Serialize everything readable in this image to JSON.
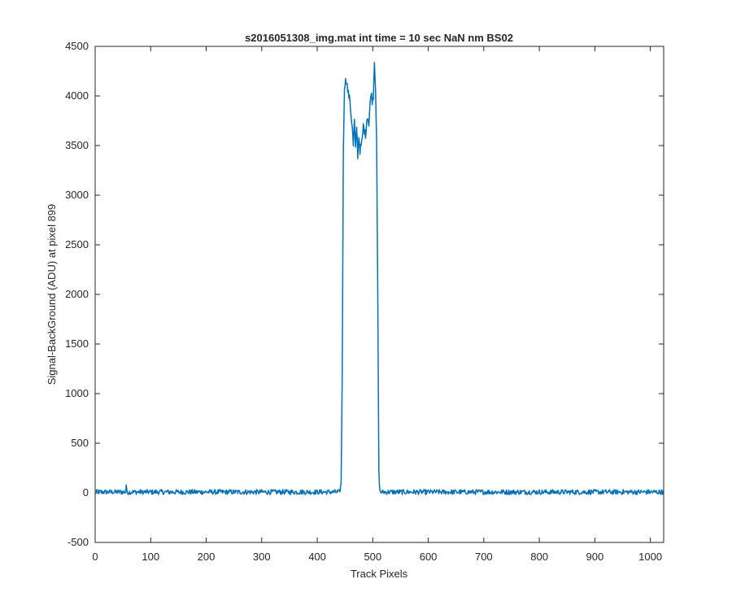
{
  "chart_data": {
    "type": "line",
    "title": "s2016051308_img.mat int time = 10 sec  NaN nm BS02",
    "xlabel": "Track Pixels",
    "ylabel": "Signal-BackGround (ADU) at pixel 899",
    "xlim": [
      0,
      1024
    ],
    "ylim": [
      -500,
      4500
    ],
    "xticks": [
      0,
      100,
      200,
      300,
      400,
      500,
      600,
      700,
      800,
      900,
      1000
    ],
    "yticks": [
      -500,
      0,
      500,
      1000,
      1500,
      2000,
      2500,
      3000,
      3500,
      4000,
      4500
    ],
    "grid": false,
    "legend": "none",
    "series": [
      {
        "color": "#0072BD",
        "baseline_noise": {
          "x_range": [
            0,
            1024
          ],
          "mean": 8,
          "amplitude": 25,
          "note_spike_at_x": 56,
          "spike_value": 80
        },
        "x": [
          0,
          440,
          443,
          445,
          447,
          449,
          451,
          453,
          455,
          457,
          459,
          461,
          463,
          465,
          467,
          469,
          471,
          473,
          475,
          477,
          479,
          481,
          483,
          485,
          487,
          489,
          491,
          493,
          495,
          497,
          499,
          501,
          503,
          505,
          507,
          509,
          511,
          513,
          1024
        ],
        "y": [
          10,
          20,
          80,
          1200,
          3400,
          4100,
          4150,
          4160,
          4050,
          4000,
          3950,
          3800,
          3700,
          3500,
          3750,
          3450,
          3700,
          3400,
          3600,
          3450,
          3500,
          3550,
          3700,
          3650,
          3600,
          3750,
          3800,
          3700,
          3900,
          4050,
          3950,
          4000,
          4350,
          4100,
          3500,
          2000,
          200,
          20,
          10
        ]
      }
    ]
  }
}
